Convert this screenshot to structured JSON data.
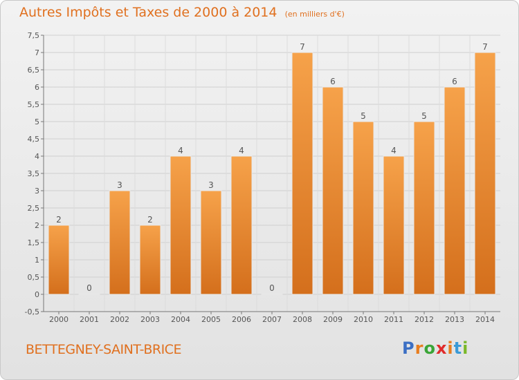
{
  "title": "Autres Impôts et Taxes de 2000 à 2014",
  "title_unit": "(en milliers d'€)",
  "location": "BETTEGNEY-SAINT-BRICE",
  "logo": {
    "text": "Proxiti",
    "colors": [
      "#3b6fc4",
      "#e87d1e",
      "#3aa537",
      "#e02b2b",
      "#e87d1e",
      "#3b9ad6",
      "#7ab829"
    ]
  },
  "chart_data": {
    "type": "bar",
    "title": "Autres Impôts et Taxes de 2000 à 2014",
    "ylabel": "(en milliers d'€)",
    "categories": [
      "2000",
      "2001",
      "2002",
      "2003",
      "2004",
      "2005",
      "2006",
      "2007",
      "2008",
      "2009",
      "2010",
      "2011",
      "2012",
      "2013",
      "2014"
    ],
    "values": [
      2,
      0,
      3,
      2,
      4,
      3,
      4,
      0,
      7,
      6,
      5,
      4,
      5,
      6,
      7
    ],
    "data_labels": [
      "2",
      "0",
      "3",
      "2",
      "4",
      "3",
      "4",
      "0",
      "7",
      "6",
      "5",
      "4",
      "5",
      "6",
      "7"
    ],
    "ylim": [
      -0.5,
      7.5
    ],
    "yticks": [
      "-0,5",
      "0",
      "0,5",
      "1",
      "1,5",
      "2",
      "2,5",
      "3",
      "3,5",
      "4",
      "4,5",
      "5",
      "5,5",
      "6",
      "6,5",
      "7",
      "7,5"
    ],
    "ytick_values": [
      -0.5,
      0,
      0.5,
      1,
      1.5,
      2,
      2.5,
      3,
      3.5,
      4,
      4.5,
      5,
      5.5,
      6,
      6.5,
      7,
      7.5
    ],
    "grid": true,
    "bar_color": "#f29a3f",
    "bar_color_dark": "#d97424"
  }
}
